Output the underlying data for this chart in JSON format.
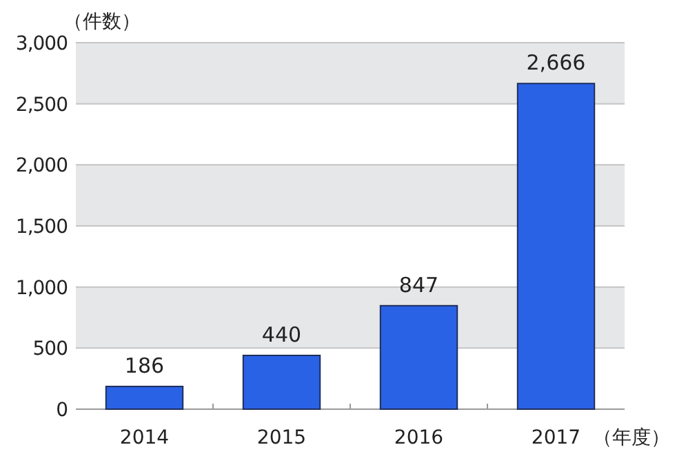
{
  "chart_data": {
    "type": "bar",
    "ylabel": "（件数）",
    "xlabel": "（年度）",
    "categories": [
      "2014",
      "2015",
      "2016",
      "2017"
    ],
    "values": [
      186,
      440,
      847,
      2666
    ],
    "value_labels": [
      "186",
      "440",
      "847",
      "2,666"
    ],
    "color": "#2a62e6",
    "ylim": [
      0,
      3000
    ],
    "yticks": [
      0,
      500,
      {
        "value": 1000,
        "label": "1,000"
      },
      {
        "value": 1500,
        "label": "1,500"
      },
      {
        "value": 2000,
        "label": "2,000"
      },
      {
        "value": 2500,
        "label": "2,500"
      },
      {
        "value": 3000,
        "label": "3,000"
      }
    ],
    "bands": [
      {
        "axis": "y",
        "from": 500,
        "to": 1000,
        "color": "#e6e7e8"
      },
      {
        "axis": "y",
        "from": 1500,
        "to": 2000,
        "color": "#e6e7e8"
      },
      {
        "axis": "y",
        "from": 2500,
        "to": 3000,
        "color": "#e6e7e8"
      }
    ],
    "grid": "y"
  }
}
